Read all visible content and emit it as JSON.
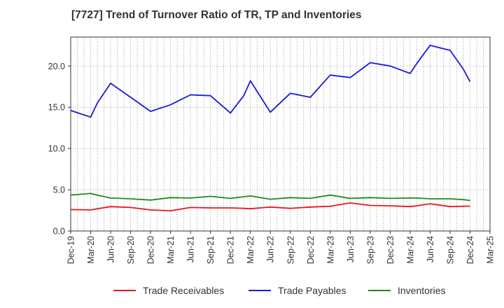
{
  "chart_data": {
    "type": "line",
    "title": "[7727]  Trend of Turnover Ratio of TR, TP and Inventories",
    "xlabel": "",
    "ylabel": "",
    "ylim": [
      0,
      23.5
    ],
    "yticks": [
      "0.0",
      "5.0",
      "10.0",
      "15.0",
      "20.0"
    ],
    "xtick_labels": [
      "Dec-19",
      "Mar-20",
      "Jun-20",
      "Sep-20",
      "Dec-20",
      "Mar-21",
      "Jun-21",
      "Sep-21",
      "Dec-21",
      "Mar-22",
      "Jun-22",
      "Sep-22",
      "Dec-22",
      "Mar-23",
      "Jun-23",
      "Sep-23",
      "Dec-23",
      "Mar-24",
      "Jun-24",
      "Sep-24",
      "Dec-24",
      "Mar-25"
    ],
    "grid": true,
    "legend_position": "bottom",
    "x": [
      "Dec-19",
      "Mar-20",
      "Apr-20",
      "Jun-20",
      "Sep-20",
      "Dec-20",
      "Mar-21",
      "Jun-21",
      "Sep-21",
      "Dec-21",
      "Feb-22",
      "Mar-22",
      "Jun-22",
      "Sep-22",
      "Dec-22",
      "Mar-23",
      "Jun-23",
      "Sep-23",
      "Dec-23",
      "Mar-24",
      "Apr-24",
      "Jun-24",
      "Sep-24",
      "Nov-24",
      "Dec-24"
    ],
    "series": [
      {
        "name": "Trade Receivables",
        "color": "#e8141c",
        "values": [
          2.6,
          2.55,
          2.7,
          2.95,
          2.85,
          2.55,
          2.45,
          2.85,
          2.8,
          2.8,
          2.75,
          2.7,
          2.9,
          2.75,
          2.9,
          3.0,
          3.4,
          3.1,
          3.05,
          2.95,
          3.05,
          3.3,
          2.95,
          3.0,
          3.0
        ]
      },
      {
        "name": "Trade Payables",
        "color": "#1a1adc",
        "values": [
          14.6,
          13.8,
          15.5,
          17.9,
          16.2,
          14.5,
          15.3,
          16.5,
          16.4,
          14.3,
          16.4,
          18.2,
          14.4,
          16.7,
          16.2,
          18.9,
          18.6,
          20.4,
          20.0,
          19.1,
          20.3,
          22.5,
          21.9,
          19.6,
          18.1
        ]
      },
      {
        "name": "Inventories",
        "color": "#1f8a1f",
        "values": [
          4.35,
          4.55,
          4.35,
          4.0,
          3.9,
          3.75,
          4.05,
          4.0,
          4.2,
          3.95,
          4.15,
          4.25,
          3.85,
          4.05,
          3.95,
          4.35,
          3.95,
          4.05,
          3.95,
          4.0,
          4.0,
          3.9,
          3.9,
          3.8,
          3.7
        ]
      }
    ]
  }
}
